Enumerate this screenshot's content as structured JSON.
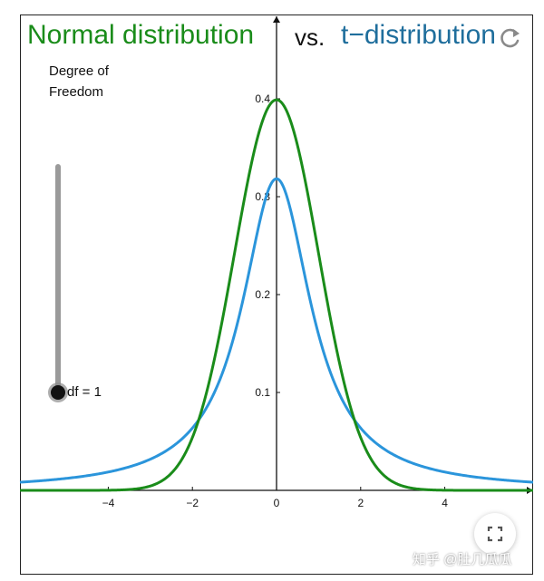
{
  "title": {
    "normal": "Normal distribution",
    "vs": "vs.",
    "t": "t−distribution"
  },
  "slider": {
    "caption_line1": "Degree of",
    "caption_line2": "Freedom",
    "df_label": "df = 1",
    "df_min": 1,
    "df_max": 30,
    "df_value": 1
  },
  "colors": {
    "normal": "#1a8c1a",
    "t": "#2b95db",
    "title_t": "#1f6e9c",
    "slider_track": "#9a9a9a",
    "slider_knob": "#111111"
  },
  "icons": {
    "refresh": "refresh-icon",
    "fullscreen": "fullscreen-icon"
  },
  "watermark": "知乎 @肚几瓜瓜",
  "chart_data": {
    "type": "line",
    "title": "Normal distribution vs. t−distribution",
    "xlim": [
      -6.1,
      6.1
    ],
    "ylim": [
      0,
      0.48
    ],
    "x_ticks": [
      -4,
      -2,
      0,
      2,
      4
    ],
    "x_tick_labels": [
      "−4",
      "−2",
      "0",
      "2",
      "4"
    ],
    "y_ticks": [
      0.1,
      0.2,
      0.3,
      0.4
    ],
    "y_tick_labels": [
      "0.1",
      "0.2",
      "0.3",
      "0.4"
    ],
    "grid": false,
    "series": [
      {
        "name": "Normal distribution",
        "function": "standard normal pdf",
        "peak": [
          0,
          0.399
        ]
      },
      {
        "name": "t−distribution",
        "function": "Student t pdf, df = 1",
        "peak": [
          0,
          0.318
        ]
      }
    ]
  }
}
